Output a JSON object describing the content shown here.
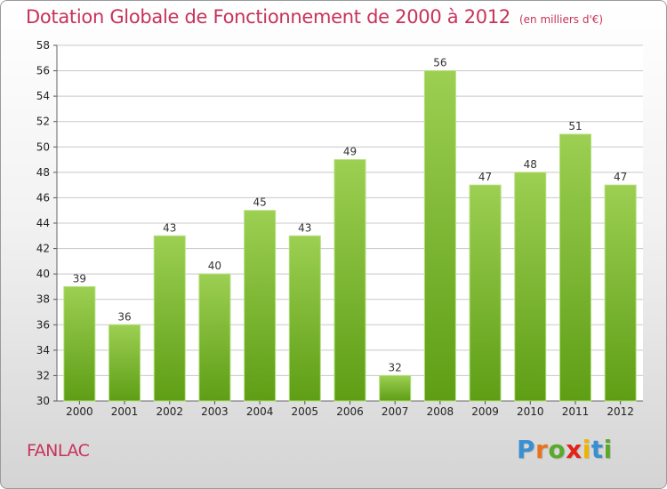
{
  "title": "Dotation Globale de Fonctionnement de 2000 à 2012",
  "unit": "(en milliers d'€)",
  "commune": "FANLAC",
  "logo": {
    "letters": [
      "P",
      "r",
      "o",
      "x",
      "i",
      "t",
      "i"
    ],
    "colors": [
      "#3a8fd0",
      "#e8731e",
      "#5aaa2a",
      "#e2231a",
      "#f0b400",
      "#3a8fd0",
      "#5aaa2a"
    ]
  },
  "colors": {
    "title": "#c8325a",
    "bar_top": "#9ccf52",
    "bar_bottom": "#5e9e15",
    "grid": "#c8c8c8"
  },
  "chart_data": {
    "type": "bar",
    "title": "Dotation Globale de Fonctionnement de 2000 à 2012",
    "subtitle": "(en milliers d'€)",
    "categories": [
      "2000",
      "2001",
      "2002",
      "2003",
      "2004",
      "2005",
      "2006",
      "2007",
      "2008",
      "2009",
      "2010",
      "2011",
      "2012"
    ],
    "values": [
      39,
      36,
      43,
      40,
      45,
      43,
      49,
      32,
      56,
      47,
      48,
      51,
      47
    ],
    "ylim": [
      30,
      58
    ],
    "yticks": [
      30,
      32,
      34,
      36,
      38,
      40,
      42,
      44,
      46,
      48,
      50,
      52,
      54,
      56,
      58
    ],
    "grid": true,
    "data_labels": true
  }
}
